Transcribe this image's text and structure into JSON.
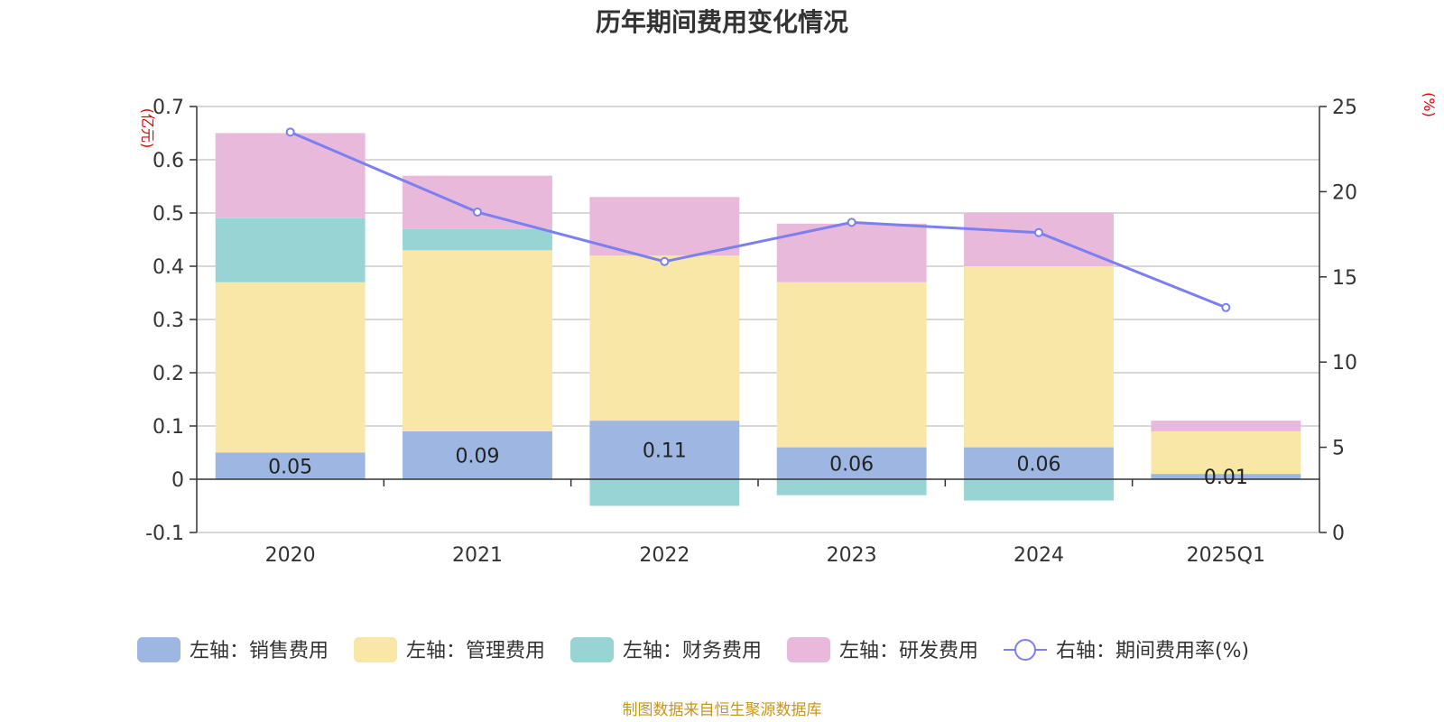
{
  "title": "历年期间费用变化情况",
  "source": "制图数据来自恒生聚源数据库",
  "chart_data": {
    "type": "bar",
    "stacked": true,
    "categories": [
      "2020",
      "2021",
      "2022",
      "2023",
      "2024",
      "2025Q1"
    ],
    "left_axis": {
      "unit": "(亿元)",
      "min": -0.1,
      "max": 0.7,
      "ticks": [
        "-0.1",
        "0",
        "0.1",
        "0.2",
        "0.3",
        "0.4",
        "0.5",
        "0.6",
        "0.7"
      ]
    },
    "right_axis": {
      "unit": "(%)",
      "min": 0,
      "max": 25,
      "ticks": [
        "0",
        "5",
        "10",
        "15",
        "20",
        "25"
      ]
    },
    "grid": true,
    "legend_position": "bottom",
    "series": [
      {
        "name": "左轴：销售费用",
        "axis": "left",
        "color": "#9db7e2",
        "values": [
          0.05,
          0.09,
          0.11,
          0.06,
          0.06,
          0.01
        ],
        "labels": [
          "0.05",
          "0.09",
          "0.11",
          "0.06",
          "0.06",
          "0.01"
        ]
      },
      {
        "name": "左轴：管理费用",
        "axis": "left",
        "color": "#f8e7a6",
        "values": [
          0.32,
          0.34,
          0.31,
          0.31,
          0.34,
          0.08
        ]
      },
      {
        "name": "左轴：财务费用",
        "axis": "left",
        "color": "#98d4d4",
        "values": [
          0.12,
          0.04,
          -0.05,
          -0.03,
          -0.04,
          0.0
        ]
      },
      {
        "name": "左轴：研发费用",
        "axis": "left",
        "color": "#e8b9da",
        "values": [
          0.16,
          0.1,
          0.11,
          0.11,
          0.1,
          0.02
        ]
      },
      {
        "name": "右轴：期间费用率(%)",
        "axis": "right",
        "type": "line",
        "color": "#7b7ff0",
        "values": [
          23.5,
          18.8,
          15.9,
          18.2,
          17.6,
          13.2
        ]
      }
    ]
  }
}
